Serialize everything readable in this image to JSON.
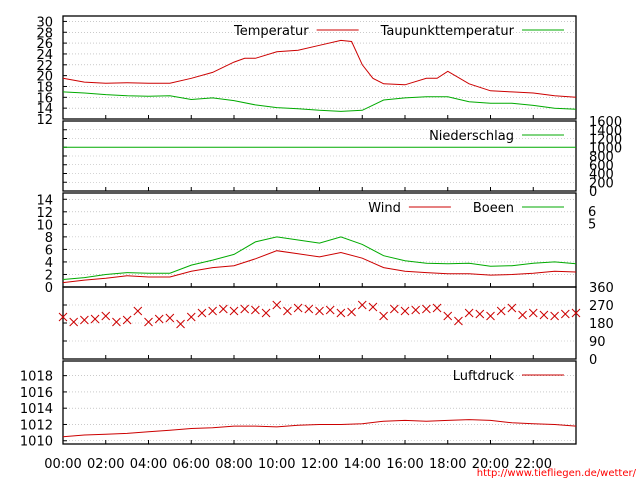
{
  "chart_data": [
    {
      "type": "line",
      "panel": "temperature",
      "yticks": [
        12,
        14,
        16,
        18,
        20,
        22,
        24,
        26,
        28,
        30
      ],
      "ylim": [
        12,
        31
      ],
      "grid": true,
      "legend_position": "top-right",
      "series": [
        {
          "name": "Temperatur",
          "color": "#cc0000",
          "x": [
            0,
            1,
            2,
            3,
            4,
            5,
            6,
            7,
            8,
            8.5,
            9,
            10,
            11,
            12,
            13,
            13.5,
            14,
            14.5,
            15,
            16,
            17,
            17.5,
            18,
            19,
            20,
            21,
            22,
            23,
            24
          ],
          "values": [
            19.5,
            18.8,
            18.6,
            18.7,
            18.6,
            18.6,
            19.5,
            20.6,
            22.5,
            23.2,
            23.2,
            24.4,
            24.7,
            25.6,
            26.5,
            26.3,
            22,
            19.5,
            18.5,
            18.3,
            19.5,
            19.5,
            20.8,
            18.5,
            17.2,
            17,
            16.8,
            16.3,
            16
          ]
        },
        {
          "name": "Taupunkttemperatur",
          "color": "#00aa00",
          "x": [
            0,
            1,
            2,
            3,
            4,
            5,
            6,
            7,
            8,
            9,
            10,
            11,
            12,
            13,
            14,
            15,
            16,
            17,
            18,
            19,
            20,
            21,
            22,
            23,
            24
          ],
          "values": [
            17,
            16.8,
            16.5,
            16.3,
            16.2,
            16.3,
            15.6,
            15.9,
            15.4,
            14.6,
            14.1,
            13.9,
            13.6,
            13.4,
            13.6,
            15.5,
            15.9,
            16.1,
            16.1,
            15.2,
            14.9,
            14.9,
            14.5,
            14,
            13.8
          ]
        }
      ]
    },
    {
      "type": "line",
      "panel": "precipitation",
      "yticks": [
        0,
        200,
        400,
        600,
        800,
        1000,
        1200,
        1400,
        1600
      ],
      "ylim": [
        0,
        1600
      ],
      "grid": true,
      "legend_position": "top-right",
      "series": [
        {
          "name": "Niederschlag",
          "color": "#00aa00",
          "x": [
            0,
            24
          ],
          "values": [
            1000,
            1000
          ]
        }
      ]
    },
    {
      "type": "line",
      "panel": "wind",
      "yticks": [
        0,
        2,
        4,
        6,
        8,
        10,
        12,
        14
      ],
      "y2ticks": [
        5,
        6
      ],
      "ylim": [
        0,
        15
      ],
      "grid": true,
      "legend_position": "top-right",
      "series": [
        {
          "name": "Wind",
          "color": "#cc0000",
          "x": [
            0,
            1,
            2,
            3,
            4,
            5,
            6,
            7,
            8,
            9,
            10,
            11,
            12,
            13,
            14,
            15,
            16,
            17,
            18,
            19,
            20,
            21,
            22,
            23,
            24
          ],
          "values": [
            0.7,
            1.1,
            1.4,
            1.8,
            1.6,
            1.6,
            2.5,
            3.1,
            3.4,
            4.5,
            5.8,
            5.3,
            4.8,
            5.5,
            4.6,
            3.1,
            2.5,
            2.3,
            2.1,
            2.1,
            1.9,
            2,
            2.2,
            2.5,
            2.4
          ]
        },
        {
          "name": "Boeen",
          "color": "#00aa00",
          "x": [
            0,
            1,
            2,
            3,
            4,
            5,
            6,
            7,
            8,
            9,
            10,
            11,
            12,
            13,
            14,
            15,
            16,
            17,
            18,
            19,
            20,
            21,
            22,
            23,
            24
          ],
          "values": [
            1.2,
            1.5,
            2,
            2.3,
            2.2,
            2.2,
            3.5,
            4.3,
            5.2,
            7.2,
            8,
            7.5,
            7,
            8,
            6.8,
            5,
            4.2,
            3.8,
            3.7,
            3.8,
            3.3,
            3.4,
            3.8,
            4,
            3.7
          ]
        }
      ]
    },
    {
      "type": "scatter",
      "panel": "wind_direction",
      "yticks": [
        0,
        90,
        180,
        270,
        360
      ],
      "ylim": [
        0,
        360
      ],
      "grid": true,
      "series": [
        {
          "color": "#cc0000",
          "x": [
            0,
            0.5,
            1,
            1.5,
            2,
            2.5,
            3,
            3.5,
            4,
            4.5,
            5,
            5.5,
            6,
            6.5,
            7,
            7.5,
            8,
            8.5,
            9,
            9.5,
            10,
            10.5,
            11,
            11.5,
            12,
            12.5,
            13,
            13.5,
            14,
            14.5,
            15,
            15.5,
            16,
            16.5,
            17,
            17.5,
            18,
            18.5,
            19,
            19.5,
            20,
            20.5,
            21,
            21.5,
            22,
            22.5,
            23,
            23.5,
            24
          ],
          "values": [
            210,
            185,
            195,
            200,
            215,
            185,
            195,
            240,
            185,
            200,
            205,
            175,
            210,
            230,
            240,
            250,
            240,
            250,
            245,
            230,
            270,
            240,
            255,
            250,
            240,
            245,
            230,
            235,
            270,
            260,
            215,
            250,
            240,
            245,
            250,
            255,
            215,
            190,
            230,
            225,
            215,
            240,
            255,
            220,
            230,
            220,
            215,
            225,
            230
          ]
        }
      ]
    },
    {
      "type": "line",
      "panel": "pressure",
      "yticks": [
        1010,
        1012,
        1014,
        1016,
        1018
      ],
      "ylim": [
        1009.6,
        1019.8
      ],
      "grid": true,
      "legend_position": "top-right",
      "series": [
        {
          "name": "Luftdruck",
          "color": "#cc0000",
          "x": [
            0,
            1,
            2,
            3,
            4,
            5,
            6,
            7,
            8,
            9,
            10,
            11,
            12,
            13,
            14,
            15,
            16,
            17,
            18,
            19,
            20,
            21,
            22,
            23,
            24
          ],
          "values": [
            1010.5,
            1010.7,
            1010.8,
            1010.9,
            1011.1,
            1011.3,
            1011.5,
            1011.6,
            1011.8,
            1011.8,
            1011.7,
            1011.9,
            1012,
            1012,
            1012.1,
            1012.4,
            1012.5,
            1012.4,
            1012.5,
            1012.6,
            1012.5,
            1012.2,
            1012.1,
            1012,
            1011.8
          ]
        }
      ]
    }
  ],
  "x_tick_labels": [
    "00:00",
    "02:00",
    "04:00",
    "06:00",
    "08:00",
    "10:00",
    "12:00",
    "14:00",
    "16:00",
    "18:00",
    "20:00",
    "22:00"
  ],
  "credit": "http://www.tiefliegen.de/wetter/"
}
